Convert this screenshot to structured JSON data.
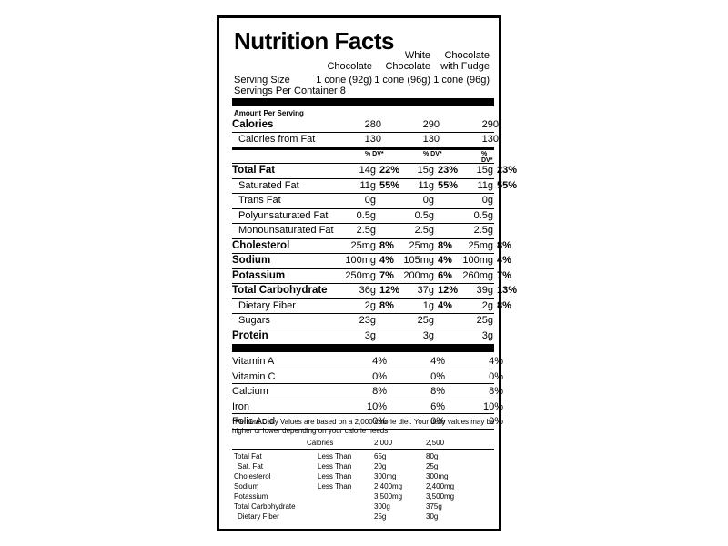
{
  "title": "Nutrition Facts",
  "columns": [
    {
      "name_lines": [
        "",
        "",
        "Chocolate"
      ],
      "serving": "1 cone (92g)"
    },
    {
      "name_lines": [
        "",
        "White",
        "Chocolate"
      ],
      "serving": "1 cone (96g)"
    },
    {
      "name_lines": [
        "",
        "Chocolate",
        "with Fudge"
      ],
      "serving": "1 cone (96g)"
    }
  ],
  "serving_size_label": "Serving Size",
  "servings_per_container": "Servings Per Container 8",
  "amount_per_serving": "Amount Per Serving",
  "calories": {
    "label": "Calories",
    "values": [
      "280",
      "290",
      "290"
    ]
  },
  "calories_fat": {
    "label": "Calories from Fat",
    "values": [
      "130",
      "130",
      "130"
    ]
  },
  "dv_label": "% DV*",
  "nutrients": [
    {
      "label": "Total Fat",
      "bold": true,
      "indent": false,
      "vals": [
        [
          "14g",
          "22%"
        ],
        [
          "15g",
          "23%"
        ],
        [
          "15g",
          "23%"
        ]
      ]
    },
    {
      "label": "Saturated Fat",
      "bold": false,
      "indent": true,
      "vals": [
        [
          "11g",
          "55%"
        ],
        [
          "11g",
          "55%"
        ],
        [
          "11g",
          "55%"
        ]
      ]
    },
    {
      "label": "Trans Fat",
      "bold": false,
      "indent": true,
      "vals": [
        [
          "0g",
          ""
        ],
        [
          "0g",
          ""
        ],
        [
          "0g",
          ""
        ]
      ]
    },
    {
      "label": "Polyunsaturated Fat",
      "bold": false,
      "indent": true,
      "vals": [
        [
          "0.5g",
          ""
        ],
        [
          "0.5g",
          ""
        ],
        [
          "0.5g",
          ""
        ]
      ]
    },
    {
      "label": "Monounsaturated Fat",
      "bold": false,
      "indent": true,
      "vals": [
        [
          "2.5g",
          ""
        ],
        [
          "2.5g",
          ""
        ],
        [
          "2.5g",
          ""
        ]
      ]
    },
    {
      "label": "Cholesterol",
      "bold": true,
      "indent": false,
      "vals": [
        [
          "25mg",
          "8%"
        ],
        [
          "25mg",
          "8%"
        ],
        [
          "25mg",
          "8%"
        ]
      ]
    },
    {
      "label": "Sodium",
      "bold": true,
      "indent": false,
      "vals": [
        [
          "100mg",
          "4%"
        ],
        [
          "105mg",
          "4%"
        ],
        [
          "100mg",
          "4%"
        ]
      ]
    },
    {
      "label": "Potassium",
      "bold": true,
      "indent": false,
      "vals": [
        [
          "250mg",
          "7%"
        ],
        [
          "200mg",
          "6%"
        ],
        [
          "260mg",
          "7%"
        ]
      ]
    },
    {
      "label": "Total Carbohydrate",
      "bold": true,
      "indent": false,
      "vals": [
        [
          "36g",
          "12%"
        ],
        [
          "37g",
          "12%"
        ],
        [
          "39g",
          "13%"
        ]
      ]
    },
    {
      "label": "Dietary Fiber",
      "bold": false,
      "indent": true,
      "vals": [
        [
          "2g",
          "8%"
        ],
        [
          "1g",
          "4%"
        ],
        [
          "2g",
          "8%"
        ]
      ]
    },
    {
      "label": "Sugars",
      "bold": false,
      "indent": true,
      "vals": [
        [
          "23g",
          ""
        ],
        [
          "25g",
          ""
        ],
        [
          "25g",
          ""
        ]
      ]
    },
    {
      "label": "Protein",
      "bold": true,
      "indent": false,
      "vals": [
        [
          "3g",
          ""
        ],
        [
          "3g",
          ""
        ],
        [
          "3g",
          ""
        ]
      ]
    }
  ],
  "vitamins": [
    {
      "label": "Vitamin A",
      "vals": [
        "4%",
        "4%",
        "4%"
      ]
    },
    {
      "label": "Vitamin C",
      "vals": [
        "0%",
        "0%",
        "0%"
      ]
    },
    {
      "label": "Calcium",
      "vals": [
        "8%",
        "8%",
        "8%"
      ]
    },
    {
      "label": "Iron",
      "vals": [
        "10%",
        "6%",
        "10%"
      ]
    },
    {
      "label": "Folic Acid",
      "vals": [
        "0%",
        "0%",
        "0%"
      ]
    }
  ],
  "footnote": "*Percent Daily Values are based on a 2,000 calorie diet. Your daily values may be higher or lower depending on your calorie needs:",
  "footer_table": {
    "header": [
      "Calories",
      "2,000",
      "2,500"
    ],
    "rows": [
      {
        "label": "Total Fat",
        "qual": "Less Than",
        "v1": "65g",
        "v2": "80g",
        "indent": false
      },
      {
        "label": "Sat. Fat",
        "qual": "Less Than",
        "v1": "20g",
        "v2": "25g",
        "indent": true
      },
      {
        "label": "Cholesterol",
        "qual": "Less Than",
        "v1": "300mg",
        "v2": "300mg",
        "indent": false
      },
      {
        "label": "Sodium",
        "qual": "Less Than",
        "v1": "2,400mg",
        "v2": "2,400mg",
        "indent": false
      },
      {
        "label": "Potassium",
        "qual": "",
        "v1": "3,500mg",
        "v2": "3,500mg",
        "indent": false
      },
      {
        "label": "Total Carbohydrate",
        "qual": "",
        "v1": "300g",
        "v2": "375g",
        "indent": false
      },
      {
        "label": "Dietary Fiber",
        "qual": "",
        "v1": "25g",
        "v2": "30g",
        "indent": true
      }
    ]
  }
}
